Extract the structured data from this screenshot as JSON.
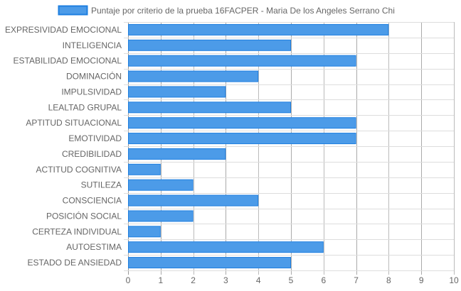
{
  "chart_data": {
    "type": "bar",
    "orientation": "horizontal",
    "title": "",
    "xlabel": "",
    "ylabel": "",
    "xlim": [
      0,
      10
    ],
    "x_ticks": [
      "0",
      "1",
      "2",
      "3",
      "4",
      "5",
      "6",
      "7",
      "8",
      "9",
      "10"
    ],
    "grid": true,
    "legend_position": "top",
    "categories": [
      "EXPRESIVIDAD EMOCIONAL",
      "INTELIGENCIA",
      "ESTABILIDAD EMOCIONAL",
      "DOMINACIÓN",
      "IMPULSIVIDAD",
      "LEALTAD GRUPAL",
      "APTITUD SITUACIONAL",
      "EMOTIVIDAD",
      "CREDIBILIDAD",
      "ACTITUD COGNITIVA",
      "SUTILEZA",
      "CONSCIENCIA",
      "POSICIÓN SOCIAL",
      "CERTEZA INDIVIDUAL",
      "AUTOESTIMA",
      "ESTADO DE ANSIEDAD"
    ],
    "series": [
      {
        "name": "Puntaje por criterio de la prueba 16FACPER - Maria De los Angeles Serrano Chi",
        "values": [
          8,
          5,
          7,
          4,
          3,
          5,
          7,
          7,
          3,
          1,
          2,
          4,
          2,
          1,
          6,
          5
        ],
        "color": "#4c9be8",
        "border_color": "#1e7fe0"
      }
    ],
    "grid_color": "#dddddd",
    "text_color": "#666666"
  }
}
